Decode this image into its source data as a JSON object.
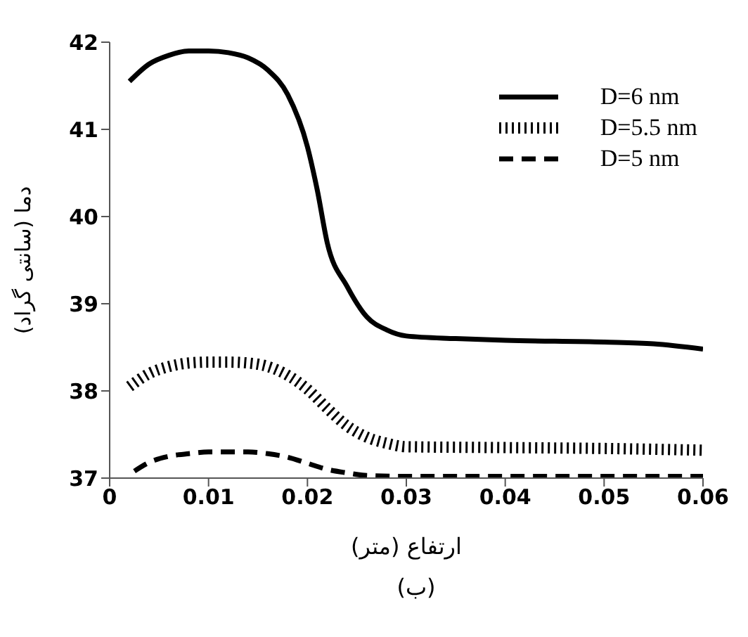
{
  "chart_data": {
    "type": "line",
    "xlabel": "ارتفاع (متر)",
    "ylabel": "دما (سانتی گراد)",
    "annotations": [
      "(ب)"
    ],
    "xlim": [
      0,
      0.06
    ],
    "xticks": [
      0,
      0.01,
      0.02,
      0.03,
      0.04,
      0.05,
      0.06
    ],
    "ylim": [
      37,
      42
    ],
    "yticks": [
      37,
      38,
      39,
      40,
      41,
      42
    ],
    "grid": false,
    "legend": "top right",
    "marker": "none",
    "series": [
      {
        "name": "D=6 nm",
        "color": "#000000",
        "line_style": "solid",
        "x": [
          0.002,
          0.004,
          0.006,
          0.008,
          0.01,
          0.012,
          0.014,
          0.016,
          0.018,
          0.02,
          0.021,
          0.022,
          0.024,
          0.026,
          0.028,
          0.03,
          0.035,
          0.04,
          0.05,
          0.055,
          0.06
        ],
        "values": [
          41.55,
          41.75,
          41.85,
          41.9,
          41.9,
          41.88,
          41.82,
          41.68,
          41.4,
          40.8,
          40.3,
          39.7,
          39.2,
          38.85,
          38.7,
          38.63,
          38.6,
          38.58,
          38.56,
          38.54,
          38.48
        ]
      },
      {
        "name": "D=5.5 nm",
        "color": "#000000",
        "line_style": "dotted",
        "x": [
          0.002,
          0.004,
          0.006,
          0.008,
          0.01,
          0.012,
          0.014,
          0.016,
          0.018,
          0.02,
          0.022,
          0.024,
          0.026,
          0.028,
          0.03,
          0.04,
          0.05,
          0.06
        ],
        "values": [
          38.05,
          38.2,
          38.28,
          38.32,
          38.33,
          38.33,
          38.32,
          38.28,
          38.18,
          38.02,
          37.8,
          37.6,
          37.47,
          37.4,
          37.36,
          37.35,
          37.34,
          37.32
        ]
      },
      {
        "name": "D=5 nm",
        "color": "#000000",
        "line_style": "dashed",
        "x": [
          0.0025,
          0.004,
          0.006,
          0.008,
          0.01,
          0.014,
          0.016,
          0.018,
          0.02,
          0.022,
          0.024,
          0.026,
          0.03,
          0.06
        ],
        "values": [
          37.08,
          37.18,
          37.25,
          37.28,
          37.3,
          37.3,
          37.28,
          37.24,
          37.17,
          37.1,
          37.06,
          37.03,
          37.02,
          37.02
        ]
      }
    ]
  }
}
